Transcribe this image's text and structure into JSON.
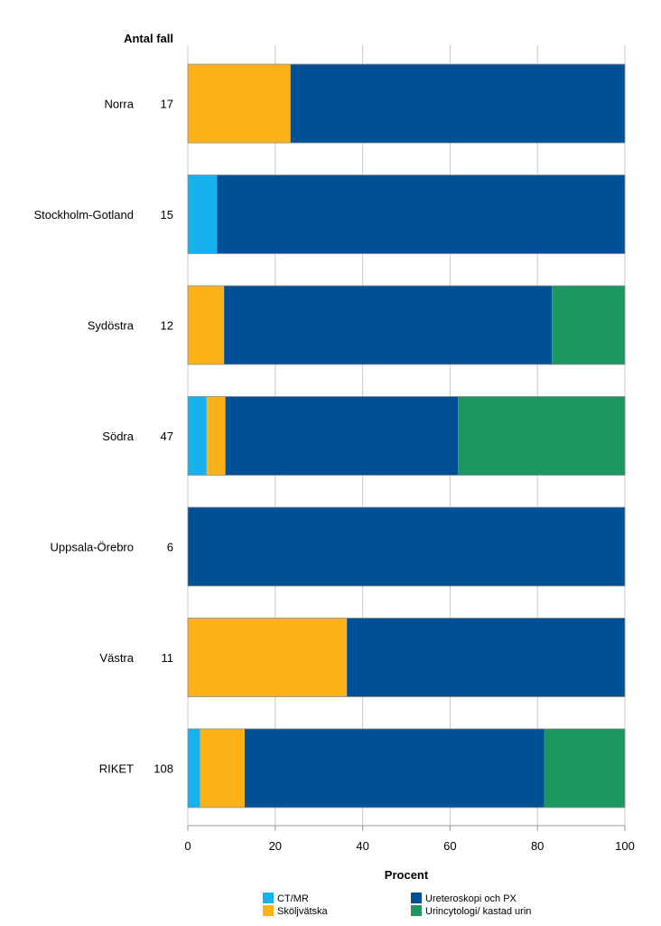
{
  "chart_data": {
    "type": "bar",
    "orientation": "horizontal",
    "stacked": true,
    "count_header": "Antal fall",
    "xlabel": "Procent",
    "xlim": [
      0,
      100
    ],
    "xticks": [
      0,
      20,
      40,
      60,
      80,
      100
    ],
    "grid": true,
    "legend_position": "bottom",
    "categories": [
      "Norra",
      "Stockholm-Gotland",
      "Sydöstra",
      "Södra",
      "Uppsala-Örebro",
      "Västra",
      "RIKET"
    ],
    "counts": [
      17,
      15,
      12,
      47,
      6,
      11,
      108
    ],
    "series": [
      {
        "name": "CT/MR",
        "color": "#17b1ee",
        "values": [
          0,
          6.7,
          0,
          4.3,
          0,
          0,
          2.8
        ]
      },
      {
        "name": "Sköljvätska",
        "color": "#fbb117",
        "values": [
          23.5,
          0,
          8.3,
          4.3,
          0,
          36.4,
          10.2
        ]
      },
      {
        "name": "Ureteroskopi och PX",
        "color": "#005096",
        "values": [
          76.5,
          93.3,
          75.0,
          53.2,
          100,
          63.6,
          68.5
        ]
      },
      {
        "name": "Urincytologi/ kastad urin",
        "color": "#1e9660",
        "values": [
          0,
          0,
          16.7,
          38.3,
          0,
          0,
          18.5
        ]
      }
    ]
  }
}
